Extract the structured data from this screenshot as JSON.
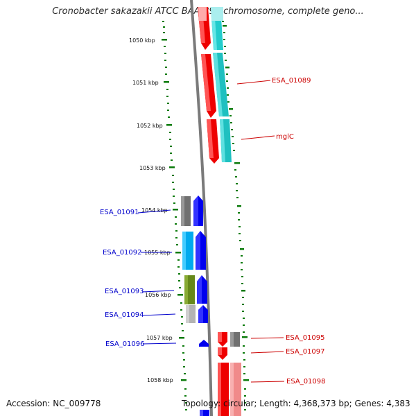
{
  "title": "Cronobacter sakazakii ATCC BAA-894 chromosome, complete geno...",
  "footer": {
    "accession": "Accession: NC_009778",
    "topology": "Topology: circular; Length: 4,368,373 bp; Genes: 4,383"
  },
  "colors": {
    "forward_label": "#cc0000",
    "reverse_label": "#0000cc",
    "tick": "#006600",
    "backbone": "#808080"
  },
  "kbp_labels": [
    "1050 kbp",
    "1051 kbp",
    "1052 kbp",
    "1053 kbp",
    "1054 kbp",
    "1055 kbp",
    "1056 kbp",
    "1057 kbp",
    "1058 kbp"
  ],
  "gene_labels": {
    "forward": [
      "ESA_01089",
      "mglC",
      "ESA_01095",
      "ESA_01097",
      "ESA_01098"
    ],
    "reverse": [
      "ESA_01091",
      "ESA_01092",
      "ESA_01093",
      "ESA_01094",
      "ESA_01096"
    ]
  }
}
